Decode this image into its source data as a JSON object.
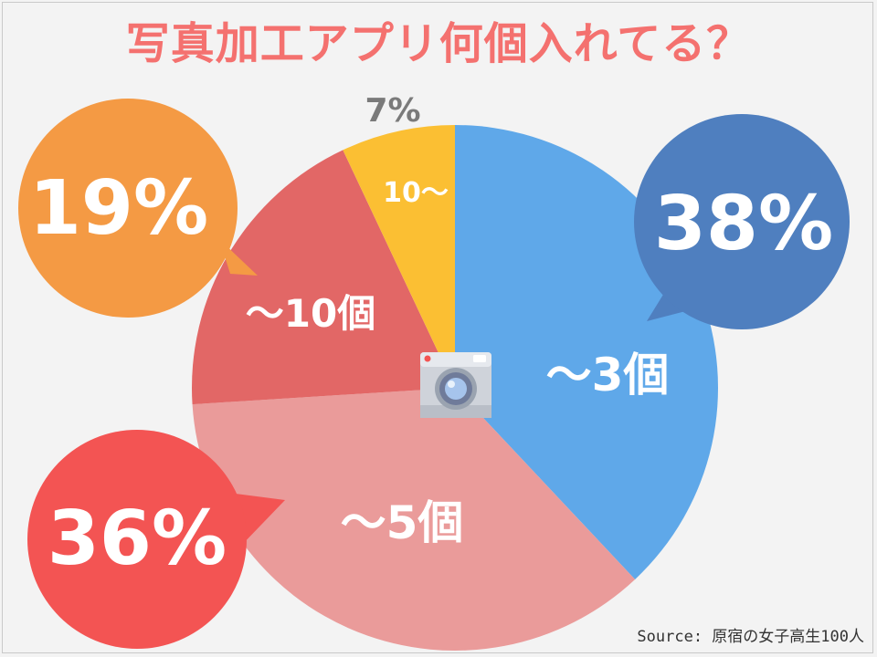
{
  "title": "写真加工アプリ何個入れてる？",
  "source": "Source: 原宿の女子高生100人",
  "chart_data": {
    "type": "pie",
    "title": "写真加工アプリ何個入れてる？",
    "slices": [
      {
        "label": "〜3個",
        "value": 38,
        "pct_label": "38%",
        "color": "#5fa8e9",
        "bubble_color": "#4f7fbf"
      },
      {
        "label": "〜5個",
        "value": 36,
        "pct_label": "36%",
        "color": "#ea9b9a",
        "bubble_color": "#f35453"
      },
      {
        "label": "〜10個",
        "value": 19,
        "pct_label": "19%",
        "color": "#e26766",
        "bubble_color": "#f49a44"
      },
      {
        "label": "10〜",
        "value": 7,
        "pct_label": "7%",
        "color": "#fbbf33",
        "bubble_color": null
      }
    ],
    "start": "12 o'clock, clockwise",
    "source": "Source: 原宿の女子高生100人"
  },
  "center_icon": "camera-icon"
}
